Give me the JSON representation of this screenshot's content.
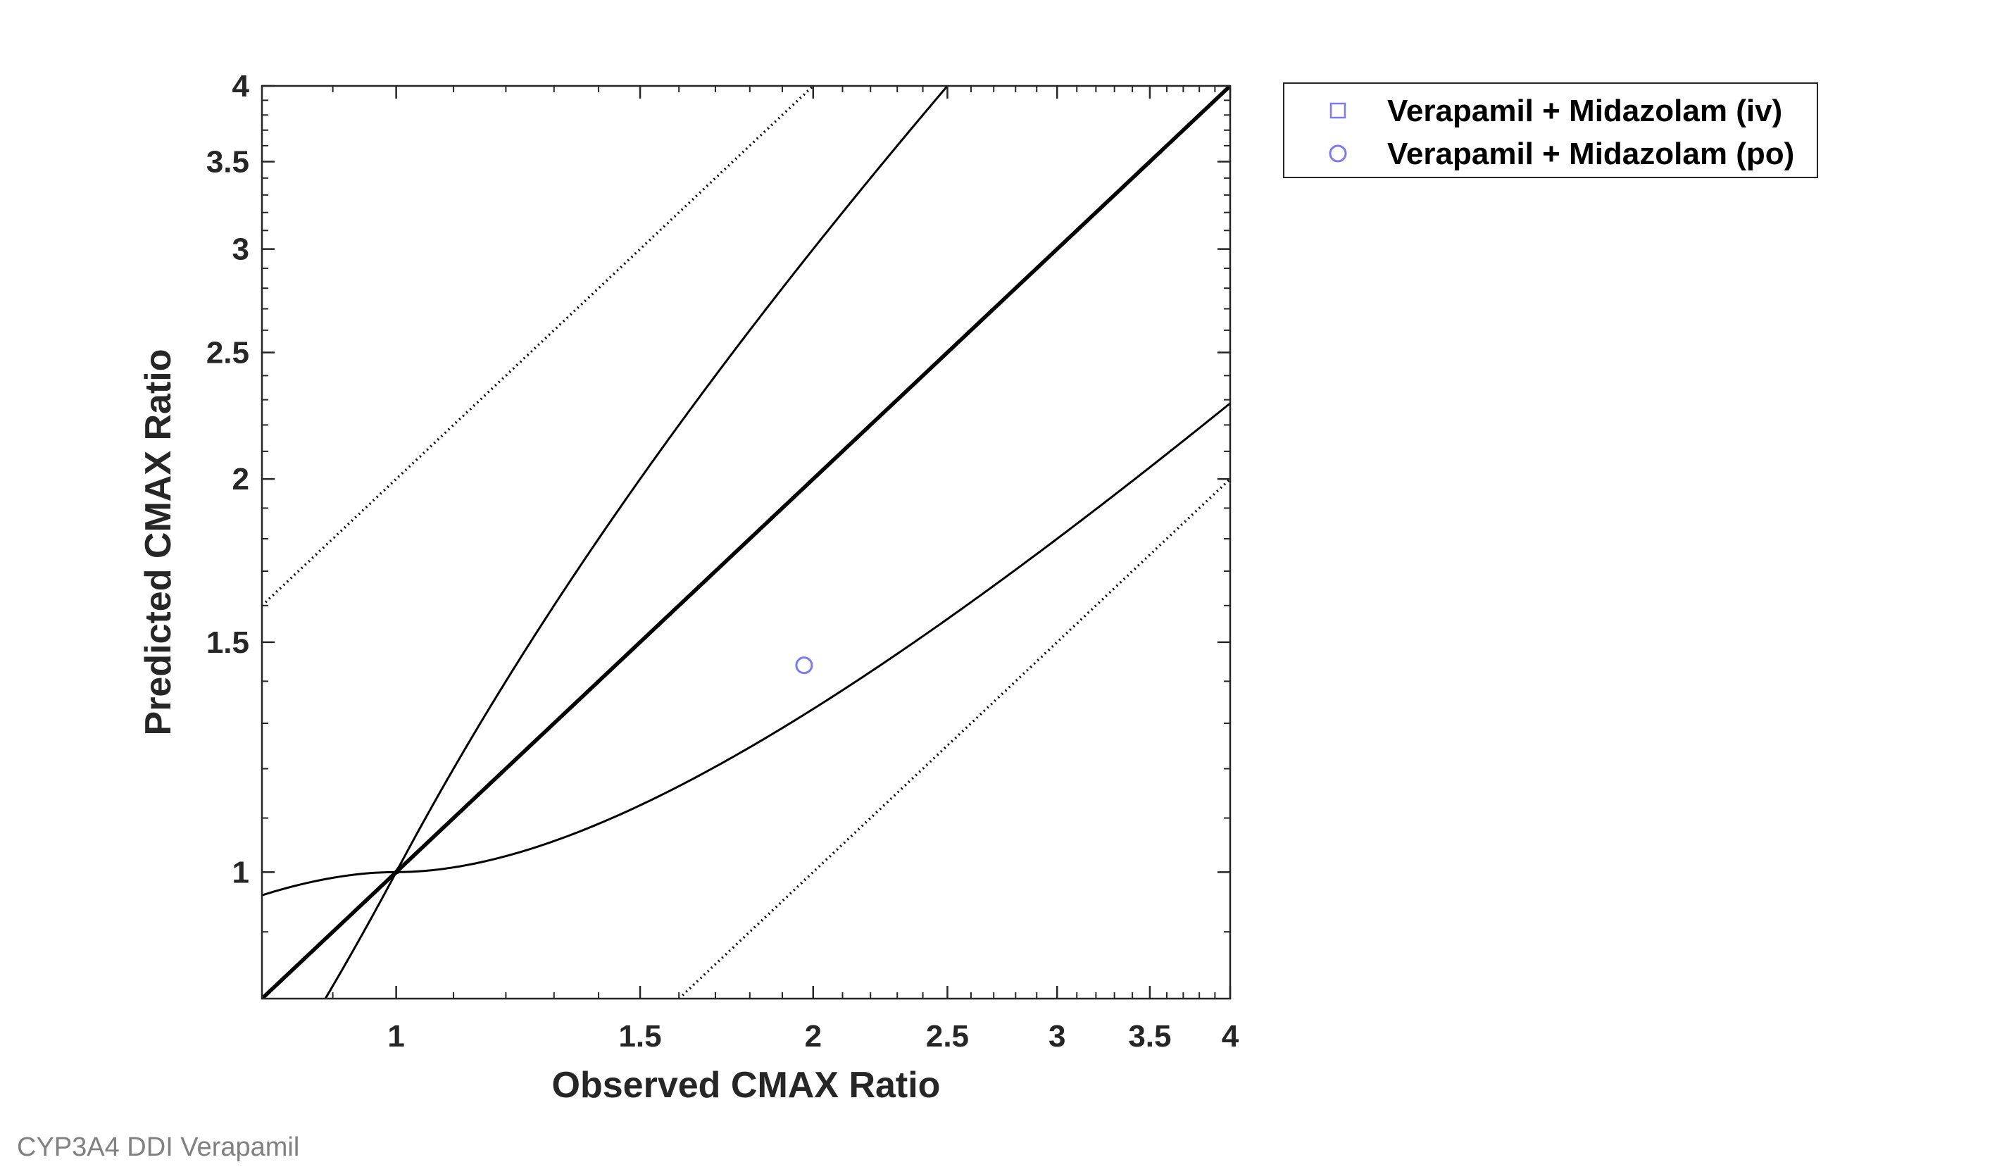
{
  "footer_label": "CYP3A4 DDI Verapamil",
  "chart_data": {
    "type": "scatter",
    "title": "",
    "xlabel": "Observed CMAX Ratio",
    "ylabel": "Predicted CMAX Ratio",
    "xscale": "log",
    "yscale": "log",
    "xlim": [
      0.8,
      4
    ],
    "ylim": [
      0.8,
      4
    ],
    "xticks": [
      1,
      1.5,
      2,
      2.5,
      3,
      3.5,
      4
    ],
    "yticks": [
      1,
      1.5,
      2,
      2.5,
      3,
      3.5,
      4
    ],
    "xtick_labels": [
      "1",
      "1.5",
      "2",
      "2.5",
      "3",
      "3.5",
      "4"
    ],
    "ytick_labels": [
      "1",
      "1.5",
      "2",
      "2.5",
      "3",
      "3.5",
      "4"
    ],
    "grid": false,
    "legend_position": "outside-top-right",
    "marker_color": "#7b7bf0",
    "reference_lines": [
      {
        "kind": "identity",
        "style": "solid-thick",
        "x": [
          0.8,
          4
        ],
        "y": [
          0.8,
          4
        ]
      },
      {
        "kind": "two-fold-upper",
        "style": "dotted",
        "x": [
          0.8,
          2
        ],
        "y": [
          1.6,
          4
        ]
      },
      {
        "kind": "two-fold-lower",
        "style": "dotted",
        "x": [
          1.6,
          4
        ],
        "y": [
          0.8,
          2
        ]
      },
      {
        "kind": "guest-limit-upper",
        "style": "solid-thin"
      },
      {
        "kind": "guest-limit-lower",
        "style": "solid-thin"
      }
    ],
    "series": [
      {
        "name": "Verapamil + Midazolam (iv)",
        "marker": "square",
        "color": "#7b7bf0",
        "points": []
      },
      {
        "name": "Verapamil + Midazolam (po)",
        "marker": "circle",
        "color": "#7b7bf0",
        "points": [
          {
            "x": 1.97,
            "y": 1.44
          }
        ]
      }
    ]
  }
}
